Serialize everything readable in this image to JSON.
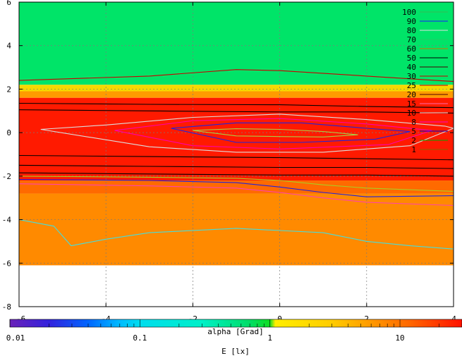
{
  "chart_data": [
    {
      "type": "heatmap",
      "x_ticks": [
        "-6",
        "-4",
        "-2",
        "0",
        "2",
        "4"
      ],
      "y_ticks": [
        "6",
        "4",
        "2",
        "0",
        "-2",
        "-4",
        "-6",
        "-8"
      ],
      "xlim": [
        -6,
        4
      ],
      "ylim": [
        -8,
        6
      ],
      "grid": true,
      "xlabel": "",
      "ylabel": "",
      "data_ymin": -6.1,
      "bands": [
        {
          "y_from": 2.2,
          "y_to": 6,
          "color": "#00e468"
        },
        {
          "y_from": 1.9,
          "y_to": 2.2,
          "color": "#f5d800"
        },
        {
          "y_from": 1.6,
          "y_to": 1.9,
          "color": "#ff9b00"
        },
        {
          "y_from": -2.2,
          "y_to": 1.6,
          "color": "#ff1a00"
        },
        {
          "y_from": -2.8,
          "y_to": -2.2,
          "color": "#ff6a00"
        },
        {
          "y_from": -6.1,
          "y_to": -2.8,
          "color": "#ff8a00"
        }
      ],
      "contour_legend_position": "top-right",
      "contour_levels": [
        {
          "label": "100",
          "color": "#33bb55"
        },
        {
          "label": "90",
          "color": "#1a1aff"
        },
        {
          "label": "80",
          "color": "#e0e0e0"
        },
        {
          "label": "70",
          "color": "#22cc66"
        },
        {
          "label": "60",
          "color": "#cc7700"
        },
        {
          "label": "50",
          "color": "#000000"
        },
        {
          "label": "40",
          "color": "#440000"
        },
        {
          "label": "30",
          "color": "#cc0000"
        },
        {
          "label": "25",
          "color": "#aa0000"
        },
        {
          "label": "20",
          "color": "#550000"
        },
        {
          "label": "15",
          "color": "#ff66aa"
        },
        {
          "label": "10",
          "color": "#e0e0e0"
        },
        {
          "label": "8",
          "color": "#ff00cc"
        },
        {
          "label": "5",
          "color": "#0000cc"
        },
        {
          "label": "2",
          "color": "#00aa00"
        },
        {
          "label": "1",
          "color": "#886600"
        }
      ],
      "contours": [
        {
          "level": "2",
          "color": "#aacc44",
          "points": [
            [
              -2,
              0.1
            ],
            [
              -1,
              0.18
            ],
            [
              0,
              0.15
            ],
            [
              1,
              0.05
            ],
            [
              1.8,
              -0.1
            ],
            [
              1,
              -0.2
            ],
            [
              0,
              -0.18
            ],
            [
              -1,
              -0.15
            ],
            [
              -2,
              0.1
            ]
          ]
        },
        {
          "level": "5",
          "color": "#2222dd",
          "points": [
            [
              -2.5,
              0.2
            ],
            [
              -1,
              0.45
            ],
            [
              0.5,
              0.45
            ],
            [
              2,
              0.2
            ],
            [
              3,
              0.05
            ],
            [
              2.2,
              -0.3
            ],
            [
              0.5,
              -0.45
            ],
            [
              -1,
              -0.45
            ],
            [
              -2.5,
              0.2
            ]
          ]
        },
        {
          "level": "8",
          "color": "#ff00aa",
          "points": [
            [
              -3.8,
              0.1
            ],
            [
              -2,
              0.55
            ],
            [
              0,
              0.65
            ],
            [
              2,
              0.4
            ],
            [
              3.5,
              0.1
            ],
            [
              2.5,
              -0.55
            ],
            [
              0,
              -0.75
            ],
            [
              -2,
              -0.6
            ],
            [
              -3.8,
              0.1
            ]
          ]
        },
        {
          "level": "10",
          "color": "#dddddd",
          "points": [
            [
              -5.5,
              0.15
            ],
            [
              -4,
              0.35
            ],
            [
              -2,
              0.7
            ],
            [
              0,
              0.85
            ],
            [
              2,
              0.6
            ],
            [
              3.8,
              0.3
            ],
            [
              4,
              0.2
            ],
            [
              3,
              -0.6
            ],
            [
              1,
              -0.9
            ],
            [
              -1,
              -0.9
            ],
            [
              -3,
              -0.65
            ],
            [
              -5.5,
              0.15
            ]
          ]
        },
        {
          "level": "20",
          "color": "#000000",
          "points": [
            [
              -6,
              1.35
            ],
            [
              -3,
              1.3
            ],
            [
              0,
              1.28
            ],
            [
              2,
              1.2
            ],
            [
              4,
              1.15
            ]
          ]
        },
        {
          "level": "25",
          "color": "#000000",
          "points": [
            [
              -6,
              1.05
            ],
            [
              -3,
              1.0
            ],
            [
              0,
              0.95
            ],
            [
              2,
              0.95
            ],
            [
              4,
              0.9
            ]
          ]
        },
        {
          "level": "30",
          "color": "#000000",
          "points": [
            [
              -6,
              -1.05
            ],
            [
              -3,
              -1.1
            ],
            [
              0,
              -1.15
            ],
            [
              2,
              -1.2
            ],
            [
              4,
              -1.25
            ]
          ]
        },
        {
          "level": "40",
          "color": "#000000",
          "points": [
            [
              -6,
              -1.5
            ],
            [
              -3,
              -1.55
            ],
            [
              0,
              -1.6
            ],
            [
              2,
              -1.6
            ],
            [
              4,
              -1.65
            ]
          ]
        },
        {
          "level": "50",
          "color": "#000000",
          "points": [
            [
              -6,
              -1.85
            ],
            [
              -3,
              -1.9
            ],
            [
              0,
              -1.95
            ],
            [
              2,
              -1.95
            ],
            [
              4,
              -2.0
            ]
          ]
        },
        {
          "level": "60",
          "color": "#cc0000",
          "points": [
            [
              -6,
              2.4
            ],
            [
              -3,
              2.6
            ],
            [
              -1,
              2.9
            ],
            [
              0,
              2.85
            ],
            [
              2,
              2.6
            ],
            [
              4,
              2.35
            ]
          ]
        },
        {
          "level": "70",
          "color": "#aacc22",
          "points": [
            [
              -6,
              -2.0
            ],
            [
              -3,
              -2.05
            ],
            [
              -1,
              -2.1
            ],
            [
              0,
              -2.2
            ],
            [
              1,
              -2.4
            ],
            [
              2,
              -2.55
            ],
            [
              4,
              -2.7
            ]
          ]
        },
        {
          "level": "80",
          "color": "#2222dd",
          "points": [
            [
              -6,
              -2.15
            ],
            [
              -3,
              -2.2
            ],
            [
              -1,
              -2.3
            ],
            [
              0,
              -2.5
            ],
            [
              1,
              -2.75
            ],
            [
              2,
              -2.95
            ],
            [
              4,
              -2.9
            ]
          ]
        },
        {
          "level": "90",
          "color": "#ff44aa",
          "points": [
            [
              -6,
              -2.35
            ],
            [
              -3,
              -2.45
            ],
            [
              -1,
              -2.55
            ],
            [
              0,
              -2.75
            ],
            [
              1,
              -3.0
            ],
            [
              2,
              -3.2
            ],
            [
              4,
              -3.35
            ]
          ]
        },
        {
          "level": "100",
          "color": "#44dddd",
          "points": [
            [
              -6,
              -4.0
            ],
            [
              -5.2,
              -4.3
            ],
            [
              -4.8,
              -5.2
            ],
            [
              -4,
              -4.9
            ],
            [
              -3,
              -4.6
            ],
            [
              -1,
              -4.4
            ],
            [
              0,
              -4.5
            ],
            [
              1,
              -4.6
            ],
            [
              2,
              -5.0
            ],
            [
              3,
              -5.2
            ],
            [
              4,
              -5.35
            ]
          ]
        }
      ]
    },
    {
      "type": "colorbar",
      "title": "alpha [Grad]",
      "xlabel": "E [lx]",
      "scale": "log",
      "xlim": [
        0.01,
        30
      ],
      "tick_labels": [
        "0.01",
        "0.1",
        "1",
        "10"
      ],
      "tick_values": [
        0.01,
        0.1,
        1,
        10
      ],
      "stops": [
        {
          "value": 0.01,
          "color": "#6a22b8"
        },
        {
          "value": 0.02,
          "color": "#3322dd"
        },
        {
          "value": 0.04,
          "color": "#0066ff"
        },
        {
          "value": 0.07,
          "color": "#00bbff"
        },
        {
          "value": 0.1,
          "color": "#00ddee"
        },
        {
          "value": 0.3,
          "color": "#00f0c8"
        },
        {
          "value": 0.7,
          "color": "#00dd66"
        },
        {
          "value": 1.0,
          "color": "#11dd22"
        },
        {
          "value": 1.1,
          "color": "#ffee00"
        },
        {
          "value": 3.0,
          "color": "#ffcc00"
        },
        {
          "value": 6.0,
          "color": "#ff9900"
        },
        {
          "value": 12.0,
          "color": "#ff6600"
        },
        {
          "value": 30.0,
          "color": "#ff1100"
        }
      ]
    }
  ]
}
